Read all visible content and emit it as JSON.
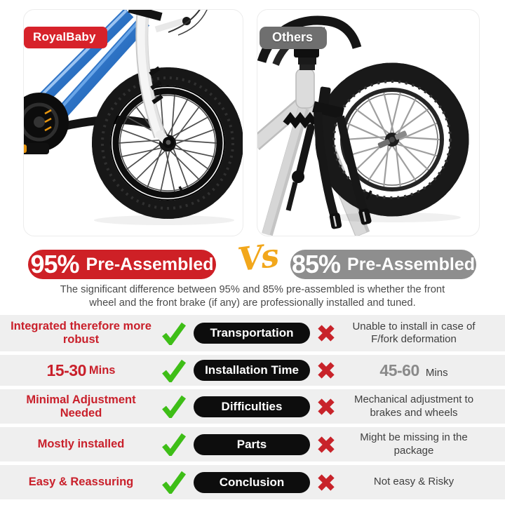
{
  "page": {
    "background": "#ffffff"
  },
  "colors": {
    "brand_red": "#D7222A",
    "badge_red": "#CE2026",
    "badge_gray": "#8E8E8E",
    "others_gray": "#6F6F6F",
    "vs_yellow": "#F2A71B",
    "check_green": "#3EBE17",
    "cross_red": "#C8232A",
    "row_background": "#EFEFEF",
    "pill_black": "#0D0D0D",
    "left_text_red": "#C9202B",
    "right_text_dark": "#3F3F3F",
    "bike_blue": "#1660C0"
  },
  "panels": {
    "left": {
      "badge": "RoyalBaby"
    },
    "right": {
      "badge": "Others"
    }
  },
  "header": {
    "left": {
      "percent": "95%",
      "label": "Pre-Assembled"
    },
    "vs": "Vs",
    "right": {
      "percent": "85%",
      "label": "Pre-Assembled"
    }
  },
  "description": {
    "line1": "The significant difference between 95% and 85% pre-assembled is whether the front",
    "line2": "wheel and the front brake (if any) are professionally installed and tuned."
  },
  "table": {
    "rows": [
      {
        "left": "Integrated therefore more robust",
        "category": "Transportation",
        "right": "Unable to install in case of F/fork deformation"
      },
      {
        "left_strong": "15-30",
        "left_rest": "Mins",
        "category": "Installation Time",
        "right_strong": "45-60",
        "right_rest": "Mins"
      },
      {
        "left": "Minimal Adjustment Needed",
        "category": "Difficulties",
        "right": "Mechanical adjustment to brakes and wheels"
      },
      {
        "left": "Mostly installed",
        "category": "Parts",
        "right": "Might be missing in the package"
      },
      {
        "left": "Easy & Reassuring",
        "category": "Conclusion",
        "right": "Not easy & Risky"
      }
    ]
  },
  "icons": {
    "check": "✔",
    "cross": "✖"
  }
}
